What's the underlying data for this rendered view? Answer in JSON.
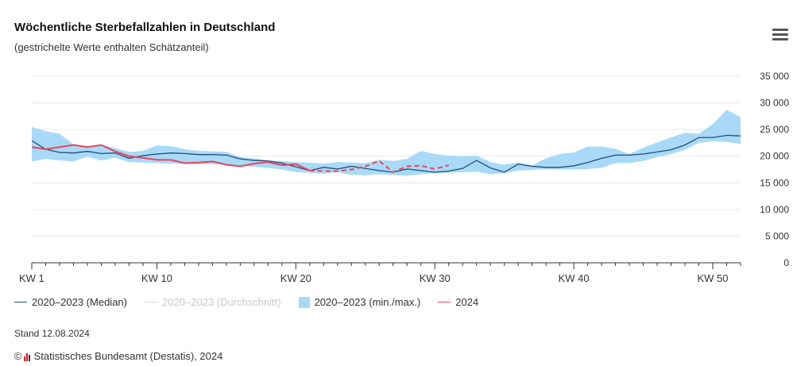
{
  "title": "Wöchentliche Sterbefallzahlen in Deutschland",
  "subtitle": "(gestrichelte Werte enthalten Schätzanteil)",
  "menu_icon": "hamburger-menu-icon",
  "stand": "Stand 12.08.2024",
  "credit": "Statistisches Bundesamt (Destatis), 2024",
  "credit_prefix": "©",
  "colors": {
    "median": "#1f4e79",
    "average": "#c8c8c8",
    "band": "#a8daf8",
    "y2024": "#e8445a",
    "grid": "#e6e6e6",
    "axis": "#333333"
  },
  "legend": [
    {
      "label": "2020–2023 (Median)",
      "kind": "line",
      "color": "#1f4e79",
      "hidden": false
    },
    {
      "label": "2020–2023 (Durchschnitt)",
      "kind": "dash",
      "color": "#c8c8c8",
      "hidden": true
    },
    {
      "label": "2020–2023 (min./max.)",
      "kind": "box",
      "color": "#a8daf8",
      "hidden": false
    },
    {
      "label": "2024",
      "kind": "line",
      "color": "#e8445a",
      "hidden": false
    }
  ],
  "chart_data": {
    "type": "line",
    "title": "Wöchentliche Sterbefallzahlen in Deutschland",
    "subtitle": "(gestrichelte Werte enthalten Schätzanteil)",
    "x_ticks": [
      1,
      10,
      20,
      30,
      40,
      50
    ],
    "x_tick_labels": [
      "KW 1",
      "KW 10",
      "KW 20",
      "KW 30",
      "KW 40",
      "KW 50"
    ],
    "xlim": [
      1,
      52
    ],
    "ylim": [
      0,
      35000
    ],
    "y_ticks": [
      0,
      5000,
      10000,
      15000,
      20000,
      25000,
      30000,
      35000
    ],
    "y_tick_labels": [
      "0",
      "5 000",
      "10 000",
      "15 000",
      "20 000",
      "25 000",
      "30 000",
      "35 000"
    ],
    "y_axis_side": "right",
    "grid": true,
    "legend_position": "bottom",
    "series": [
      {
        "name": "2020–2023 (Median)",
        "kind": "line",
        "x": [
          1,
          2,
          3,
          4,
          5,
          6,
          7,
          8,
          9,
          10,
          11,
          12,
          13,
          14,
          15,
          16,
          17,
          18,
          19,
          20,
          21,
          22,
          23,
          24,
          25,
          26,
          27,
          28,
          29,
          30,
          31,
          32,
          33,
          34,
          35,
          36,
          37,
          38,
          39,
          40,
          41,
          42,
          43,
          44,
          45,
          46,
          47,
          48,
          49,
          50,
          51,
          52
        ],
        "values": [
          22900,
          21300,
          20700,
          20600,
          20900,
          20500,
          20600,
          19600,
          20100,
          20400,
          20600,
          20500,
          20300,
          20300,
          20200,
          19500,
          19200,
          19100,
          18700,
          18000,
          17300,
          17900,
          17600,
          18100,
          17700,
          17300,
          17000,
          17600,
          17300,
          17000,
          17200,
          17700,
          19200,
          17800,
          17000,
          18500,
          18100,
          17900,
          17900,
          18200,
          18800,
          19600,
          20200,
          20200,
          20400,
          20800,
          21200,
          22100,
          23500,
          23500,
          23900,
          23800
        ]
      },
      {
        "name": "2020–2023 (Durchschnitt)",
        "kind": "line",
        "hidden": true,
        "values": []
      },
      {
        "name": "2020–2023 (min./max.)",
        "kind": "area-range",
        "x": [
          1,
          2,
          3,
          4,
          5,
          6,
          7,
          8,
          9,
          10,
          11,
          12,
          13,
          14,
          15,
          16,
          17,
          18,
          19,
          20,
          21,
          22,
          23,
          24,
          25,
          26,
          27,
          28,
          29,
          30,
          31,
          32,
          33,
          34,
          35,
          36,
          37,
          38,
          39,
          40,
          41,
          42,
          43,
          44,
          45,
          46,
          47,
          48,
          49,
          50,
          51,
          52
        ],
        "max": [
          25500,
          24700,
          24200,
          22200,
          21700,
          22100,
          21500,
          20800,
          21000,
          22000,
          21900,
          21300,
          21000,
          20900,
          20800,
          19800,
          19600,
          19200,
          19100,
          18900,
          18800,
          18600,
          18900,
          18800,
          18700,
          19300,
          19100,
          19500,
          21000,
          20400,
          20100,
          20000,
          20100,
          18900,
          18400,
          18800,
          18300,
          19600,
          20400,
          20700,
          21800,
          21800,
          21400,
          20400,
          21600,
          22600,
          23500,
          24400,
          24200,
          26000,
          28700,
          27300
        ],
        "min": [
          19000,
          19500,
          19200,
          19000,
          19900,
          19200,
          19700,
          18900,
          18800,
          18700,
          18600,
          18600,
          18500,
          18500,
          18400,
          18200,
          18000,
          17800,
          17500,
          17000,
          16900,
          16700,
          17000,
          16500,
          16400,
          16600,
          16500,
          16300,
          16600,
          16800,
          16900,
          17000,
          17100,
          16600,
          16800,
          17300,
          17400,
          17600,
          17500,
          17500,
          17600,
          17800,
          18700,
          18700,
          19100,
          19800,
          20400,
          21200,
          22500,
          22800,
          22700,
          22300
        ]
      },
      {
        "name": "2024",
        "kind": "line",
        "x": [
          1,
          2,
          3,
          4,
          5,
          6,
          7,
          8,
          9,
          10,
          11,
          12,
          13,
          14,
          15,
          16,
          17,
          18,
          19,
          20,
          21,
          22,
          23,
          24,
          25,
          26,
          27,
          28,
          29,
          30,
          31
        ],
        "values": [
          21700,
          21300,
          21700,
          22100,
          21700,
          22100,
          20900,
          20000,
          19700,
          19300,
          19300,
          18700,
          18800,
          19000,
          18400,
          18100,
          18600,
          18900,
          18300,
          18500,
          17300,
          17200,
          17200,
          17500,
          18100,
          19100,
          17000,
          18100,
          18200,
          17600,
          18300
        ],
        "estimated_from": 21
      }
    ]
  }
}
